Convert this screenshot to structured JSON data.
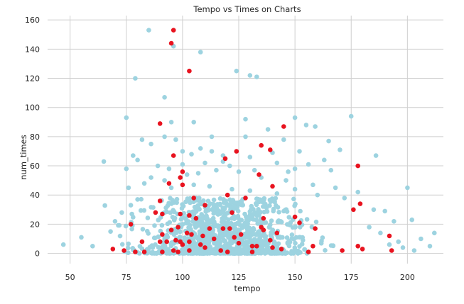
{
  "chart_data": {
    "type": "scatter",
    "title": "Tempo vs Times on Charts",
    "xlabel": "tempo",
    "ylabel": "num_times",
    "xlim": [
      40,
      216
    ],
    "ylim": [
      -7,
      163
    ],
    "x_ticks": [
      50,
      75,
      100,
      125,
      150,
      175,
      200
    ],
    "y_ticks": [
      0,
      20,
      40,
      60,
      80,
      100,
      120,
      140,
      160
    ],
    "x_tick_labels": [
      "50",
      "75",
      "100",
      "125",
      "150",
      "175",
      "200"
    ],
    "y_tick_labels": [
      "0",
      "20",
      "40",
      "60",
      "80",
      "100",
      "120",
      "140",
      "160"
    ],
    "grid": true,
    "colors": {
      "blue": "#9dd3e0",
      "red": "#e8131f",
      "grid": "#cfcfcf",
      "text": "#262626"
    },
    "series": [
      {
        "color": "#9dd3e0",
        "points": [
          [
            85,
            153
          ],
          [
            96,
            142
          ],
          [
            108,
            138
          ],
          [
            124,
            125
          ],
          [
            130,
            122
          ],
          [
            133,
            121
          ],
          [
            92,
            107
          ],
          [
            79,
            120
          ],
          [
            150,
            93
          ],
          [
            175,
            94
          ],
          [
            75,
            93
          ],
          [
            128,
            92
          ],
          [
            95,
            90
          ],
          [
            105,
            90
          ],
          [
            138,
            85
          ],
          [
            155,
            88
          ],
          [
            159,
            87
          ],
          [
            82,
            78
          ],
          [
            92,
            80
          ],
          [
            97,
            78
          ],
          [
            113,
            80
          ],
          [
            128,
            80
          ],
          [
            145,
            78
          ],
          [
            165,
            77
          ],
          [
            108,
            72
          ],
          [
            113,
            70
          ],
          [
            86,
            75
          ],
          [
            78,
            67
          ],
          [
            80,
            64
          ],
          [
            65,
            63
          ],
          [
            100,
            70
          ],
          [
            104,
            68
          ],
          [
            118,
            67
          ],
          [
            130,
            66
          ],
          [
            140,
            69
          ],
          [
            152,
            70
          ],
          [
            163,
            64
          ],
          [
            170,
            71
          ],
          [
            186,
            67
          ],
          [
            200,
            45
          ],
          [
            89,
            60
          ],
          [
            94,
            58
          ],
          [
            100,
            61
          ],
          [
            110,
            62
          ],
          [
            118,
            63
          ],
          [
            121,
            60
          ],
          [
            132,
            57
          ],
          [
            142,
            62
          ],
          [
            150,
            58
          ],
          [
            156,
            61
          ],
          [
            147,
            56
          ],
          [
            166,
            57
          ],
          [
            75,
            58
          ],
          [
            86,
            52
          ],
          [
            92,
            50
          ],
          [
            102,
            54
          ],
          [
            107,
            55
          ],
          [
            115,
            57
          ],
          [
            125,
            56
          ],
          [
            135,
            52
          ],
          [
            146,
            50
          ],
          [
            158,
            47
          ],
          [
            168,
            45
          ],
          [
            178,
            42
          ],
          [
            76,
            45
          ],
          [
            83,
            48
          ],
          [
            95,
            45
          ],
          [
            105,
            47
          ],
          [
            112,
            46
          ],
          [
            122,
            44
          ],
          [
            130,
            43
          ],
          [
            142,
            41
          ],
          [
            150,
            44
          ],
          [
            160,
            40
          ],
          [
            172,
            38
          ],
          [
            185,
            30
          ],
          [
            190,
            29
          ],
          [
            194,
            22
          ],
          [
            202,
            23
          ],
          [
            206,
            10
          ],
          [
            210,
            5
          ],
          [
            212,
            14
          ],
          [
            203,
            2
          ],
          [
            198,
            4
          ],
          [
            192,
            6
          ],
          [
            60,
            5
          ],
          [
            55,
            11
          ],
          [
            47,
            6
          ],
          [
            68,
            15
          ],
          [
            70,
            22
          ],
          [
            73,
            28
          ],
          [
            77,
            33
          ],
          [
            80,
            37
          ],
          [
            188,
            14
          ],
          [
            196,
            8
          ],
          [
            183,
            18
          ]
        ],
        "cloud": {
          "x_range": [
            64,
            200
          ],
          "center": 118,
          "spread": 25,
          "count": 1150,
          "y_max": 38
        }
      },
      {
        "color": "#e8131f",
        "points": [
          [
            96,
            153
          ],
          [
            95,
            144
          ],
          [
            103,
            125
          ],
          [
            90,
            89
          ],
          [
            145,
            87
          ],
          [
            135,
            74
          ],
          [
            139,
            71
          ],
          [
            124,
            70
          ],
          [
            178,
            60
          ],
          [
            96,
            67
          ],
          [
            100,
            56
          ],
          [
            119,
            65
          ],
          [
            99,
            52
          ],
          [
            134,
            54
          ],
          [
            100,
            47
          ],
          [
            94,
            48
          ],
          [
            140,
            46
          ],
          [
            90,
            36
          ],
          [
            105,
            38
          ],
          [
            128,
            38
          ],
          [
            120,
            40
          ],
          [
            179,
            34
          ],
          [
            110,
            33
          ],
          [
            77,
            20
          ],
          [
            88,
            28
          ],
          [
            91,
            27
          ],
          [
            99,
            27
          ],
          [
            103,
            26
          ],
          [
            106,
            24
          ],
          [
            122,
            28
          ],
          [
            136,
            24
          ],
          [
            150,
            25
          ],
          [
            152,
            21
          ],
          [
            176,
            30
          ],
          [
            192,
            12
          ],
          [
            95,
            16
          ],
          [
            98,
            18
          ],
          [
            102,
            14
          ],
          [
            112,
            17
          ],
          [
            118,
            17
          ],
          [
            121,
            17
          ],
          [
            135,
            18
          ],
          [
            136,
            16
          ],
          [
            142,
            14
          ],
          [
            159,
            17
          ],
          [
            91,
            13
          ],
          [
            93,
            8
          ],
          [
            104,
            13
          ],
          [
            109,
            12
          ],
          [
            114,
            10
          ],
          [
            123,
            11
          ],
          [
            126,
            13
          ],
          [
            139,
            9
          ],
          [
            82,
            8
          ],
          [
            90,
            8
          ],
          [
            97,
            9
          ],
          [
            99,
            8
          ],
          [
            100,
            6
          ],
          [
            103,
            8
          ],
          [
            108,
            6
          ],
          [
            110,
            4
          ],
          [
            125,
            7
          ],
          [
            131,
            5
          ],
          [
            133,
            5
          ],
          [
            140,
            4
          ],
          [
            144,
            3
          ],
          [
            158,
            5
          ],
          [
            178,
            5
          ],
          [
            180,
            3
          ],
          [
            74,
            2
          ],
          [
            69,
            3
          ],
          [
            79,
            1
          ],
          [
            83,
            1
          ],
          [
            96,
            2
          ],
          [
            103,
            2
          ],
          [
            117,
            2
          ],
          [
            131,
            1
          ],
          [
            156,
            1
          ],
          [
            171,
            2
          ],
          [
            193,
            2
          ],
          [
            91,
            1
          ],
          [
            98,
            1
          ],
          [
            120,
            1
          ]
        ]
      }
    ]
  }
}
